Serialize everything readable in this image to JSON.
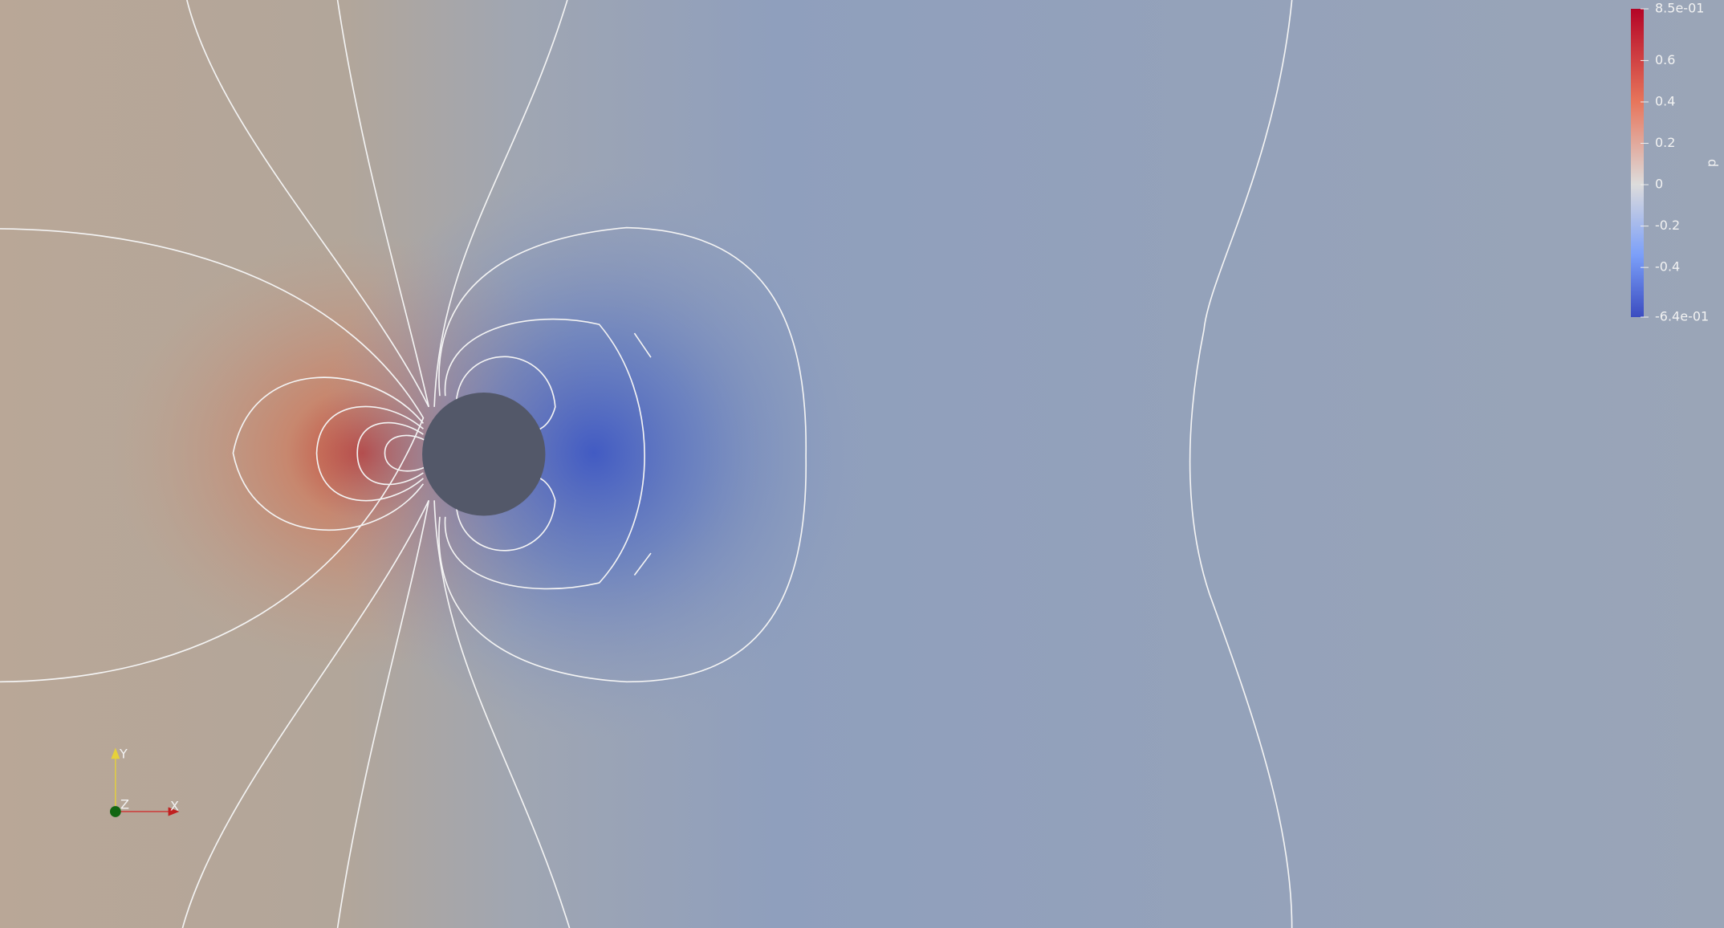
{
  "colorbar": {
    "title": "p",
    "range": [
      -0.64,
      0.85
    ],
    "ticks": [
      {
        "value": 0.85,
        "label": "8.5e-01"
      },
      0.6,
      0.4,
      0.2,
      0,
      -0.2,
      -0.4,
      {
        "value": -0.64,
        "label": "-6.4e-01"
      }
    ]
  },
  "orientation_axes": {
    "x": "X",
    "y": "Y",
    "z": "Z"
  }
}
